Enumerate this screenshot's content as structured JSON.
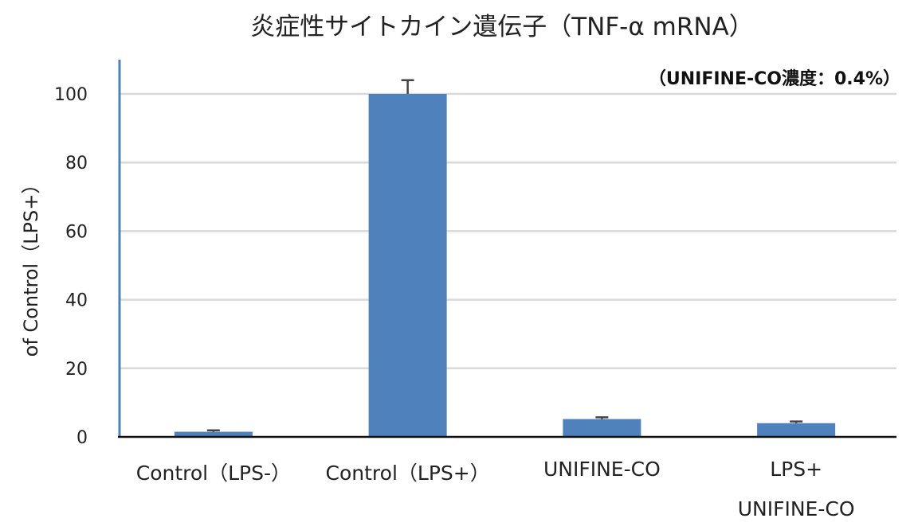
{
  "chart_data": {
    "type": "bar",
    "title": "炎症性サイトカイン遺伝子（TNF-α mRNA）",
    "annotation": "（UNIFINE-CO濃度：0.4%）",
    "ylabel": "of Control（LPS+）",
    "xlabel": "",
    "ylim": [
      0,
      110
    ],
    "yticks": [
      0,
      20,
      40,
      60,
      80,
      100
    ],
    "grid": true,
    "categories": [
      [
        "Control（LPS-）"
      ],
      [
        "Control（LPS+）"
      ],
      [
        "UNIFINE-CO"
      ],
      [
        "LPS+",
        "UNIFINE-CO"
      ]
    ],
    "values": [
      1.5,
      100,
      5.2,
      4.0
    ],
    "errors": [
      0.4,
      4.0,
      0.5,
      0.5
    ],
    "bar_color": "#4F81BD",
    "axis_color": "#4F81BD"
  }
}
